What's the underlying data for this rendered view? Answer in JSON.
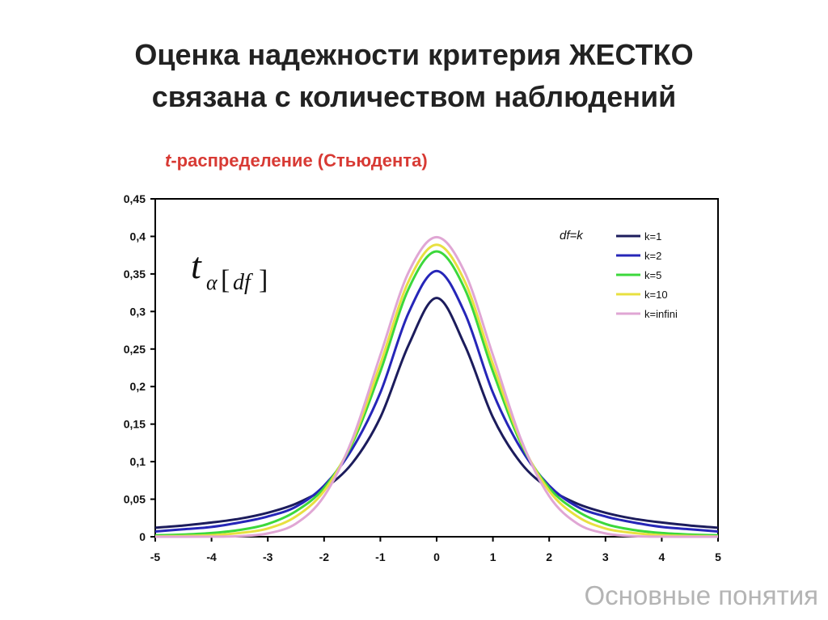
{
  "slide": {
    "title_line1": "Оценка надежности критерия ЖЕСТКО",
    "title_line2": "связана с количеством наблюдений",
    "footer": "Основные понятия"
  },
  "chart_data": {
    "type": "line",
    "title_prefix": "t",
    "title_rest": "-распределение (Стьюдента)",
    "title_color": "#d83a34",
    "formula": {
      "t": "t",
      "alpha": "α",
      "df": "df"
    },
    "xlim": [
      -5,
      5
    ],
    "ylim": [
      0,
      0.45
    ],
    "x_ticks": [
      "-5",
      "-4",
      "-3",
      "-2",
      "-1",
      "0",
      "1",
      "2",
      "3",
      "4",
      "5"
    ],
    "y_ticks": [
      "0",
      "0,05",
      "0,1",
      "0,15",
      "0,2",
      "0,25",
      "0,3",
      "0,35",
      "0,4",
      "0,45"
    ],
    "grid": false,
    "legend_title": "df=k",
    "legend_position": "top-right",
    "x": [
      -5,
      -4.5,
      -4,
      -3.5,
      -3,
      -2.5,
      -2,
      -1.5,
      -1,
      -0.5,
      0,
      0.5,
      1,
      1.5,
      2,
      2.5,
      3,
      3.5,
      4,
      4.5,
      5
    ],
    "series": [
      {
        "name": "k=1",
        "color": "#1c1c5c",
        "values": [
          0.012,
          0.015,
          0.019,
          0.024,
          0.032,
          0.044,
          0.064,
          0.098,
          0.159,
          0.255,
          0.318,
          0.255,
          0.159,
          0.098,
          0.064,
          0.044,
          0.032,
          0.024,
          0.019,
          0.015,
          0.012
        ]
      },
      {
        "name": "k=2",
        "color": "#2626b8",
        "values": [
          0.007,
          0.01,
          0.013,
          0.019,
          0.027,
          0.04,
          0.068,
          0.117,
          0.192,
          0.298,
          0.354,
          0.298,
          0.192,
          0.117,
          0.068,
          0.04,
          0.027,
          0.019,
          0.013,
          0.01,
          0.007
        ]
      },
      {
        "name": "k=5",
        "color": "#3cd83c",
        "values": [
          0.002,
          0.003,
          0.005,
          0.009,
          0.017,
          0.034,
          0.065,
          0.124,
          0.22,
          0.33,
          0.38,
          0.33,
          0.22,
          0.124,
          0.065,
          0.034,
          0.017,
          0.009,
          0.005,
          0.003,
          0.002
        ]
      },
      {
        "name": "k=10",
        "color": "#e8e040",
        "values": [
          0.0004,
          0.001,
          0.002,
          0.005,
          0.011,
          0.027,
          0.061,
          0.127,
          0.23,
          0.34,
          0.389,
          0.34,
          0.23,
          0.127,
          0.061,
          0.027,
          0.011,
          0.005,
          0.002,
          0.001,
          0.0004
        ]
      },
      {
        "name": "k=infini",
        "color": "#e0a6d4",
        "values": [
          0.0,
          0.0,
          0.0001,
          0.0009,
          0.0044,
          0.0175,
          0.054,
          0.1295,
          0.242,
          0.352,
          0.399,
          0.352,
          0.242,
          0.1295,
          0.054,
          0.0175,
          0.0044,
          0.0009,
          0.0001,
          0.0,
          0.0
        ]
      }
    ]
  }
}
